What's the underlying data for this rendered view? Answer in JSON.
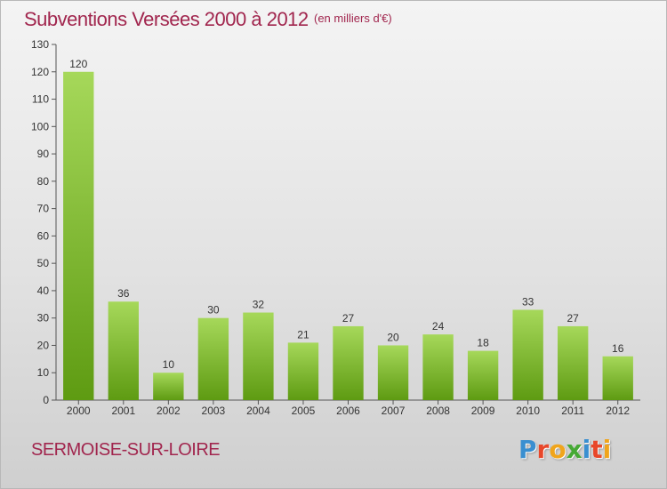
{
  "header": {
    "title": "Subventions Versées 2000 à 2012",
    "subtitle": "(en milliers d'€)"
  },
  "footer": {
    "location": "SERMOISE-SUR-LOIRE",
    "logo_letters": [
      "P",
      "r",
      "o",
      "x",
      "i",
      "t",
      "i"
    ]
  },
  "colors": {
    "title": "#a1264e",
    "bar_top": "#a6d85a",
    "bar_bottom": "#5e9b12",
    "logo": [
      "#3a8fd0",
      "#e8472a",
      "#f0a51c",
      "#46a935",
      "#3a8fd0",
      "#e8472a",
      "#f0a51c"
    ]
  },
  "chart_data": {
    "type": "bar",
    "title": "Subventions Versées 2000 à 2012",
    "subtitle": "(en milliers d'€)",
    "xlabel": "",
    "ylabel": "",
    "categories": [
      "2000",
      "2001",
      "2002",
      "2003",
      "2004",
      "2005",
      "2006",
      "2007",
      "2008",
      "2009",
      "2010",
      "2011",
      "2012"
    ],
    "values": [
      120,
      36,
      10,
      30,
      32,
      21,
      27,
      20,
      24,
      18,
      33,
      27,
      16
    ],
    "ylim": [
      0,
      130
    ],
    "yticks": [
      0,
      10,
      20,
      30,
      40,
      50,
      60,
      70,
      80,
      90,
      100,
      110,
      120,
      130
    ],
    "grid": false,
    "legend": "none"
  }
}
